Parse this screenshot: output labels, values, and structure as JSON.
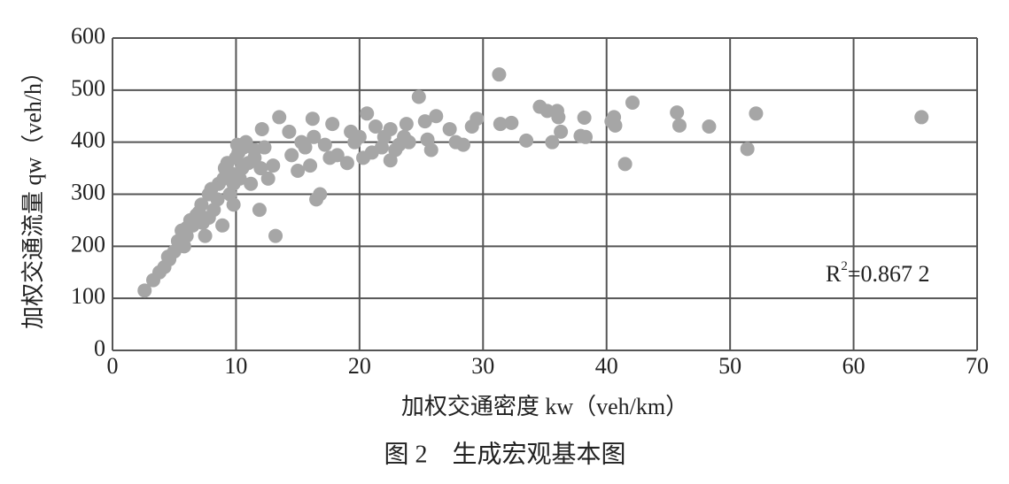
{
  "chart_data": {
    "type": "scatter",
    "x_label": "加权交通密度 kw（veh/km）",
    "y_label": "加权交通流量 qw（veh/h）",
    "caption": "图 2　生成宏观基本图",
    "annotation_parts": [
      "R",
      "2",
      "=0.867 2"
    ],
    "color": "#a6a6a6",
    "grid": true,
    "xlim": [
      0,
      70
    ],
    "xticks": [
      0,
      10,
      20,
      30,
      40,
      50,
      60,
      70
    ],
    "ylim": [
      0,
      600
    ],
    "yticks": [
      0,
      100,
      200,
      300,
      400,
      500,
      600
    ],
    "x": [
      2.6,
      3.3,
      3.8,
      4.2,
      4.6,
      5.0,
      5.3,
      5.6,
      6.0,
      6.3,
      6.8,
      7.2,
      7.5,
      7.8,
      8.2,
      8.6,
      8.9,
      9.1,
      9.5,
      9.8,
      10.2,
      10.5,
      10.8,
      11.2,
      11.5,
      11.9,
      12.1,
      12.3,
      12.6,
      13.0,
      13.2,
      13.5,
      14.3,
      14.5,
      15.0,
      15.3,
      15.6,
      16.0,
      16.2,
      16.3,
      16.5,
      16.8,
      17.2,
      17.6,
      17.8,
      18.2,
      19.0,
      19.3,
      19.6,
      20.0,
      20.3,
      20.6,
      21.0,
      21.3,
      21.8,
      22.0,
      22.5,
      22.5,
      22.9,
      23.2,
      23.6,
      23.8,
      24.0,
      24.8,
      25.3,
      25.5,
      25.8,
      26.2,
      27.3,
      27.8,
      28.4,
      29.1,
      29.5,
      31.3,
      31.4,
      32.3,
      33.5,
      34.6,
      35.2,
      35.6,
      36.0,
      36.1,
      36.3,
      37.9,
      38.2,
      38.3,
      40.4,
      40.6,
      40.7,
      41.5,
      42.1,
      45.7,
      45.9,
      48.3,
      51.4,
      52.1,
      65.5,
      6.5,
      7.0,
      7.8,
      8.5,
      9.0,
      9.3,
      9.6,
      10.0,
      10.3,
      10.6,
      11.0,
      11.5,
      12.0,
      6.0,
      7.3,
      8.0,
      9.8,
      10.1,
      5.8,
      4.5
    ],
    "values": [
      115,
      135,
      150,
      160,
      175,
      190,
      210,
      230,
      220,
      250,
      260,
      280,
      220,
      300,
      270,
      320,
      240,
      350,
      300,
      280,
      380,
      350,
      400,
      320,
      370,
      270,
      425,
      390,
      330,
      355,
      220,
      448,
      420,
      375,
      345,
      400,
      390,
      355,
      445,
      410,
      290,
      300,
      395,
      370,
      435,
      375,
      360,
      420,
      400,
      410,
      370,
      455,
      380,
      430,
      390,
      410,
      365,
      425,
      385,
      395,
      410,
      435,
      400,
      487,
      440,
      405,
      385,
      450,
      425,
      400,
      395,
      430,
      445,
      530,
      435,
      437,
      403,
      468,
      460,
      400,
      460,
      448,
      420,
      412,
      447,
      410,
      440,
      448,
      432,
      358,
      476,
      457,
      432,
      430,
      387,
      455,
      448,
      240,
      265,
      255,
      290,
      330,
      360,
      340,
      370,
      330,
      390,
      360,
      385,
      350,
      235,
      245,
      310,
      320,
      395,
      200,
      180
    ]
  }
}
